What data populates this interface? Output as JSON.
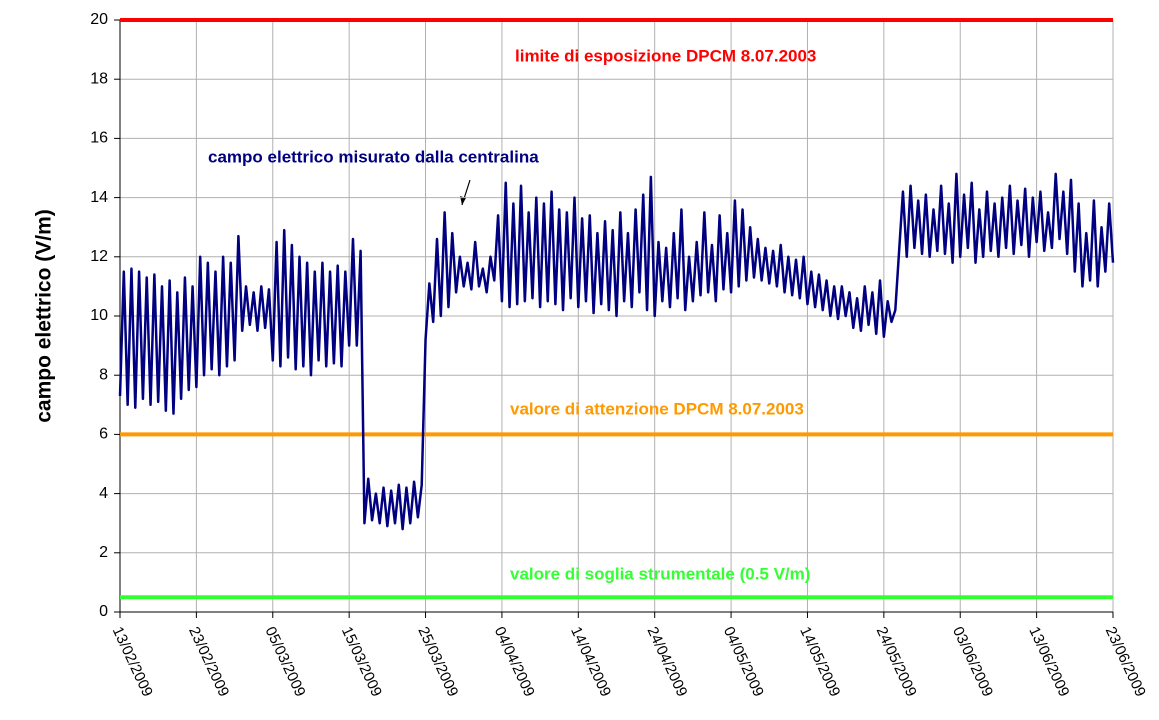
{
  "chart_data": {
    "type": "line",
    "y_label": "campo elettrico (V/m)",
    "xlim": [
      0,
      130
    ],
    "ylim": [
      0,
      20
    ],
    "yticks": [
      0,
      2,
      4,
      6,
      8,
      10,
      12,
      14,
      16,
      18,
      20
    ],
    "xticks": [
      {
        "value": 0,
        "label": "13/02/2009"
      },
      {
        "value": 10,
        "label": "23/02/2009"
      },
      {
        "value": 20,
        "label": "05/03/2009"
      },
      {
        "value": 30,
        "label": "15/03/2009"
      },
      {
        "value": 40,
        "label": "25/03/2009"
      },
      {
        "value": 50,
        "label": "04/04/2009"
      },
      {
        "value": 60,
        "label": "14/04/2009"
      },
      {
        "value": 70,
        "label": "24/04/2009"
      },
      {
        "value": 80,
        "label": "04/05/2009"
      },
      {
        "value": 90,
        "label": "14/05/2009"
      },
      {
        "value": 100,
        "label": "24/05/2009"
      },
      {
        "value": 110,
        "label": "03/06/2009"
      },
      {
        "value": 120,
        "label": "13/06/2009"
      },
      {
        "value": 130,
        "label": "23/06/2009"
      }
    ],
    "grid": true,
    "reference_lines": [
      {
        "value": 20,
        "color": "#ff0000",
        "label": "limite di esposizione DPCM 8.07.2003"
      },
      {
        "value": 6,
        "color": "#ff9900",
        "label": "valore di attenzione DPCM 8.07.2003"
      },
      {
        "value": 0.5,
        "color": "#33ff33",
        "label": "valore di soglia strumentale (0.5 V/m)"
      }
    ],
    "series": [
      {
        "name": "campo elettrico misurato dalla centralina",
        "color": "#000080",
        "x": [
          0,
          0.5,
          1,
          1.5,
          2,
          2.5,
          3,
          3.5,
          4,
          4.5,
          5,
          5.5,
          6,
          6.5,
          7,
          7.5,
          8,
          8.5,
          9,
          9.5,
          10,
          10.5,
          11,
          11.5,
          12,
          12.5,
          13,
          13.5,
          14,
          14.5,
          15,
          15.5,
          16,
          16.5,
          17,
          17.5,
          18,
          18.5,
          19,
          19.5,
          20,
          20.5,
          21,
          21.5,
          22,
          22.5,
          23,
          23.5,
          24,
          24.5,
          25,
          25.5,
          26,
          26.5,
          27,
          27.5,
          28,
          28.5,
          29,
          29.5,
          30,
          30.5,
          31,
          31.5,
          32,
          32.5,
          33,
          33.5,
          34,
          34.5,
          35,
          35.5,
          36,
          36.5,
          37,
          37.5,
          38,
          38.5,
          39,
          39.5,
          40,
          40.5,
          41,
          41.5,
          42,
          42.5,
          43,
          43.5,
          44,
          44.5,
          45,
          45.5,
          46,
          46.5,
          47,
          47.5,
          48,
          48.5,
          49,
          49.5,
          50,
          50.5,
          51,
          51.5,
          52,
          52.5,
          53,
          53.5,
          54,
          54.5,
          55,
          55.5,
          56,
          56.5,
          57,
          57.5,
          58,
          58.5,
          59,
          59.5,
          60,
          60.5,
          61,
          61.5,
          62,
          62.5,
          63,
          63.5,
          64,
          64.5,
          65,
          65.5,
          66,
          66.5,
          67,
          67.5,
          68,
          68.5,
          69,
          69.5,
          70,
          70.5,
          71,
          71.5,
          72,
          72.5,
          73,
          73.5,
          74,
          74.5,
          75,
          75.5,
          76,
          76.5,
          77,
          77.5,
          78,
          78.5,
          79,
          79.5,
          80,
          80.5,
          81,
          81.5,
          82,
          82.5,
          83,
          83.5,
          84,
          84.5,
          85,
          85.5,
          86,
          86.5,
          87,
          87.5,
          88,
          88.5,
          89,
          89.5,
          90,
          90.5,
          91,
          91.5,
          92,
          92.5,
          93,
          93.5,
          94,
          94.5,
          95,
          95.5,
          96,
          96.5,
          97,
          97.5,
          98,
          98.5,
          99,
          99.5,
          100,
          100.5,
          101,
          101.5,
          102,
          102.5,
          103,
          103.5,
          104,
          104.5,
          105,
          105.5,
          106,
          106.5,
          107,
          107.5,
          108,
          108.5,
          109,
          109.5,
          110,
          110.5,
          111,
          111.5,
          112,
          112.5,
          113,
          113.5,
          114,
          114.5,
          115,
          115.5,
          116,
          116.5,
          117,
          117.5,
          118,
          118.5,
          119,
          119.5,
          120,
          120.5,
          121,
          121.5,
          122,
          122.5,
          123,
          123.5,
          124,
          124.5,
          125,
          125.5,
          126,
          126.5,
          127,
          127.5,
          128,
          128.5,
          129,
          129.5,
          130
        ],
        "values": [
          7.3,
          11.5,
          7.0,
          11.6,
          6.9,
          11.5,
          7.2,
          11.3,
          7.0,
          11.4,
          7.1,
          11.0,
          6.8,
          11.2,
          6.7,
          10.8,
          7.2,
          11.3,
          7.5,
          11.0,
          7.6,
          12.0,
          8.0,
          11.8,
          8.2,
          11.5,
          8.0,
          12.0,
          8.3,
          11.8,
          8.5,
          12.7,
          9.5,
          11.0,
          9.7,
          10.8,
          9.5,
          11.0,
          9.6,
          10.9,
          8.5,
          12.5,
          8.3,
          12.9,
          8.6,
          12.4,
          8.2,
          12.0,
          8.3,
          11.8,
          8.0,
          11.5,
          8.5,
          11.8,
          8.3,
          11.5,
          8.4,
          11.7,
          8.3,
          11.5,
          9.0,
          12.6,
          9.0,
          12.2,
          3.0,
          4.5,
          3.1,
          4.0,
          3.0,
          4.2,
          2.9,
          4.1,
          3.0,
          4.3,
          2.8,
          4.2,
          3.0,
          4.4,
          3.2,
          4.3,
          9.2,
          11.1,
          9.8,
          12.6,
          10.0,
          13.5,
          10.3,
          12.8,
          10.8,
          12.0,
          11.0,
          11.8,
          10.9,
          12.5,
          11.0,
          11.6,
          10.8,
          12.0,
          11.2,
          13.4,
          10.5,
          14.5,
          10.3,
          13.8,
          10.4,
          14.4,
          10.5,
          13.5,
          10.6,
          14.0,
          10.3,
          13.8,
          10.5,
          14.2,
          10.4,
          13.6,
          10.2,
          13.5,
          10.6,
          14.0,
          10.3,
          13.3,
          10.5,
          13.4,
          10.1,
          12.8,
          10.4,
          13.2,
          10.2,
          12.9,
          10.0,
          13.5,
          10.5,
          12.8,
          10.3,
          13.6,
          10.8,
          14.1,
          10.2,
          14.7,
          10.0,
          12.5,
          10.5,
          12.3,
          10.3,
          12.8,
          10.6,
          13.6,
          10.2,
          12.0,
          10.5,
          12.5,
          10.7,
          13.5,
          10.8,
          12.4,
          10.5,
          13.4,
          10.9,
          12.8,
          10.8,
          13.9,
          11.0,
          13.6,
          11.2,
          13.0,
          11.3,
          12.6,
          11.2,
          12.3,
          11.1,
          12.2,
          11.0,
          12.4,
          10.8,
          12.0,
          10.7,
          11.9,
          10.6,
          12.0,
          10.4,
          11.5,
          10.3,
          11.4,
          10.2,
          11.2,
          10.0,
          11.0,
          9.9,
          11.0,
          10.0,
          10.8,
          9.6,
          10.6,
          9.5,
          11.0,
          9.7,
          10.8,
          9.4,
          11.2,
          9.3,
          10.5,
          9.8,
          10.2,
          12.2,
          14.2,
          12.0,
          14.4,
          12.3,
          13.9,
          12.1,
          14.1,
          12.0,
          13.6,
          12.2,
          14.4,
          12.1,
          13.8,
          11.8,
          14.8,
          12.0,
          14.1,
          12.3,
          14.5,
          11.8,
          13.6,
          12.0,
          14.2,
          12.2,
          13.8,
          12.0,
          14.0,
          12.3,
          14.4,
          12.1,
          13.9,
          12.4,
          14.3,
          12.0,
          14.0,
          12.5,
          14.2,
          12.2,
          13.5,
          12.3,
          14.8,
          12.6,
          14.2,
          12.1,
          14.6,
          11.5,
          13.8,
          11.0,
          12.8,
          11.2,
          13.9,
          11.0,
          13.0,
          11.5,
          13.8,
          11.8
        ]
      }
    ]
  }
}
